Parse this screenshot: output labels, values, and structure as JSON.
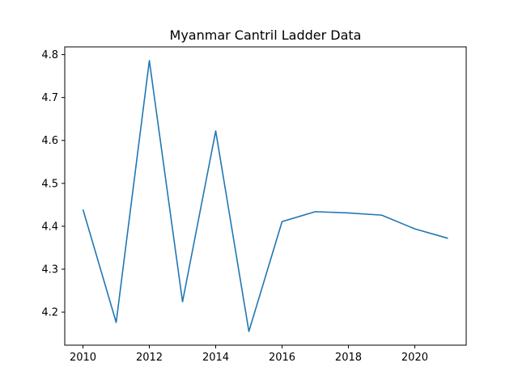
{
  "chart_data": {
    "type": "line",
    "title": "Myanmar Cantril Ladder Data",
    "xlabel": "",
    "ylabel": "",
    "x": [
      2010,
      2011,
      2012,
      2013,
      2014,
      2015,
      2016,
      2017,
      2018,
      2019,
      2020,
      2021
    ],
    "series": [
      {
        "values": [
          4.439,
          4.176,
          4.786,
          4.224,
          4.622,
          4.155,
          4.411,
          4.434,
          4.431,
          4.426,
          4.394,
          4.372
        ],
        "color": "#1f77b4"
      }
    ],
    "xlim": [
      2009.45,
      2021.55
    ],
    "ylim": [
      4.123,
      4.818
    ],
    "xticks": [
      2010,
      2012,
      2014,
      2016,
      2018,
      2020
    ],
    "yticks": [
      4.2,
      4.3,
      4.4,
      4.5,
      4.6,
      4.7,
      4.8
    ],
    "ytick_labels": [
      "4.2",
      "4.3",
      "4.4",
      "4.5",
      "4.6",
      "4.7",
      "4.8"
    ],
    "grid": false
  }
}
